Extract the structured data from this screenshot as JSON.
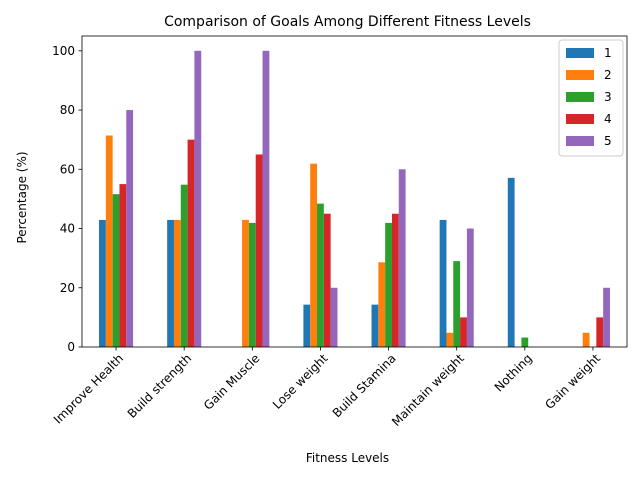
{
  "chart_data": {
    "type": "bar",
    "title": "Comparison of Goals Among Different Fitness Levels",
    "xlabel": "Fitness Levels",
    "ylabel": "Percentage (%)",
    "ylim": [
      0,
      105
    ],
    "yticks": [
      0,
      20,
      40,
      60,
      80,
      100
    ],
    "grid": false,
    "legend_position": "top-right",
    "categories": [
      "Improve Health",
      "Build strength",
      "Gain Muscle",
      "Lose weight",
      "Build Stamina",
      "Maintain weight",
      "Nothing",
      "Gain weight"
    ],
    "series": [
      {
        "name": "1",
        "color": "#1f77b4",
        "values": [
          42.9,
          42.9,
          0,
          14.3,
          14.3,
          42.9,
          57.1,
          0
        ]
      },
      {
        "name": "2",
        "color": "#ff7f0e",
        "values": [
          71.4,
          42.9,
          42.9,
          61.9,
          28.6,
          4.8,
          0,
          4.8
        ]
      },
      {
        "name": "3",
        "color": "#2ca02c",
        "values": [
          51.6,
          54.8,
          41.9,
          48.4,
          41.9,
          29.0,
          3.2,
          0
        ]
      },
      {
        "name": "4",
        "color": "#d62728",
        "values": [
          55,
          70,
          65,
          45,
          45,
          10,
          0,
          10
        ]
      },
      {
        "name": "5",
        "color": "#9467bd",
        "values": [
          80,
          100,
          100,
          20,
          60,
          40,
          0,
          20
        ]
      }
    ]
  }
}
